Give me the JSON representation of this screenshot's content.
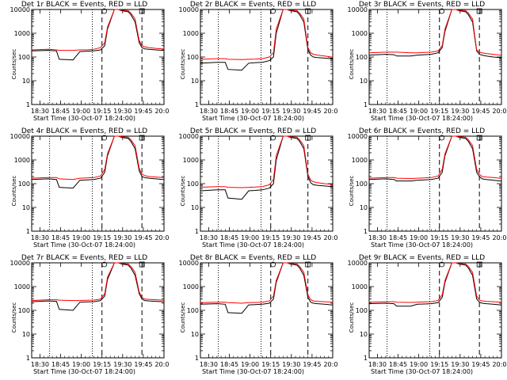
{
  "chart_data": {
    "type": "line",
    "series_names": [],
    "ylabel": "Counts/sec",
    "xlabel": "Start Time (30-Oct-07 18:24:00)",
    "x_tick_labels": [
      "18:30",
      "18:45",
      "19:00",
      "19:15",
      "19:30",
      "19:45",
      "20:00"
    ],
    "y_tick_labels": [
      "1",
      "10",
      "100",
      "1000",
      "10000"
    ],
    "yscale": "log",
    "ylim": [
      1,
      10000
    ],
    "x_ticks_minutes": [
      6,
      21,
      36,
      51,
      66,
      81,
      96
    ],
    "xlim_minutes": [
      0,
      96
    ],
    "x_minutes": [
      0,
      12,
      18,
      20,
      30,
      35,
      40,
      45,
      50,
      53,
      55,
      60,
      63,
      65,
      70,
      72,
      75,
      78,
      80,
      82,
      85,
      90,
      95,
      96
    ],
    "colors": {
      "events": "#000000",
      "lld": "#ff0000"
    },
    "panels": [
      {
        "title": "Det 1r BLACK = Events, RED = LLD",
        "events": [
          180,
          190,
          180,
          80,
          75,
          170,
          175,
          180,
          200,
          300,
          1500,
          10000,
          10000,
          9000,
          8000,
          6000,
          3000,
          400,
          250,
          220,
          210,
          200,
          190,
          190
        ],
        "lld": [
          200,
          210,
          200,
          190,
          190,
          200,
          200,
          210,
          250,
          400,
          1800,
          10000,
          10000,
          9500,
          9000,
          7000,
          4000,
          500,
          300,
          270,
          250,
          230,
          220,
          220
        ],
        "dotted_x": [
          13,
          44
        ],
        "dashed_x": [
          51,
          80
        ]
      },
      {
        "title": "Det 2r BLACK = Events, RED = LLD",
        "events": [
          55,
          60,
          60,
          30,
          28,
          55,
          58,
          60,
          70,
          100,
          1000,
          10000,
          10000,
          9000,
          8000,
          6000,
          3000,
          200,
          120,
          100,
          95,
          90,
          85,
          85
        ],
        "lld": [
          80,
          85,
          85,
          80,
          78,
          80,
          82,
          85,
          100,
          150,
          1500,
          10000,
          10000,
          9500,
          9000,
          7000,
          4000,
          250,
          150,
          130,
          120,
          110,
          100,
          100
        ],
        "dotted_x": [
          13,
          44
        ],
        "dashed_x": [
          51,
          78
        ]
      },
      {
        "title": "Det 3r BLACK = Events, RED = LLD",
        "events": [
          120,
          130,
          125,
          110,
          110,
          120,
          125,
          130,
          150,
          250,
          1200,
          10000,
          10000,
          9000,
          8000,
          6000,
          3000,
          180,
          130,
          120,
          110,
          100,
          95,
          95
        ],
        "lld": [
          150,
          160,
          160,
          160,
          150,
          150,
          155,
          160,
          180,
          300,
          1500,
          10000,
          10000,
          9500,
          9000,
          7000,
          4000,
          200,
          160,
          150,
          140,
          130,
          120,
          120
        ],
        "dotted_x": [
          13,
          44
        ],
        "dashed_x": [
          51,
          80
        ]
      },
      {
        "title": "Det 4r BLACK = Events, RED = LLD",
        "events": [
          150,
          160,
          150,
          70,
          65,
          140,
          145,
          150,
          170,
          300,
          1500,
          10000,
          10000,
          9000,
          8000,
          6000,
          3000,
          350,
          200,
          180,
          170,
          160,
          150,
          150
        ],
        "lld": [
          170,
          180,
          180,
          160,
          150,
          170,
          175,
          180,
          210,
          400,
          1800,
          10000,
          10000,
          9500,
          9000,
          7000,
          4000,
          450,
          250,
          220,
          200,
          190,
          180,
          180
        ],
        "dotted_x": [
          13,
          44
        ],
        "dashed_x": [
          51,
          80
        ]
      },
      {
        "title": "Det 5r BLACK = Events, RED = LLD",
        "events": [
          50,
          55,
          55,
          25,
          22,
          50,
          52,
          55,
          65,
          100,
          1000,
          10000,
          10000,
          9000,
          8000,
          6000,
          3000,
          200,
          110,
          90,
          85,
          80,
          75,
          75
        ],
        "lld": [
          70,
          75,
          75,
          70,
          68,
          70,
          72,
          75,
          90,
          150,
          1500,
          10000,
          10000,
          9500,
          9000,
          7000,
          4000,
          250,
          140,
          120,
          110,
          100,
          95,
          95
        ],
        "dotted_x": [
          13,
          44
        ],
        "dashed_x": [
          51,
          78
        ]
      },
      {
        "title": "Det 6r BLACK = Events, RED = LLD",
        "events": [
          150,
          160,
          150,
          130,
          130,
          140,
          145,
          150,
          170,
          300,
          1500,
          10000,
          10000,
          9000,
          8000,
          6000,
          3000,
          300,
          200,
          160,
          150,
          140,
          130,
          130
        ],
        "lld": [
          170,
          180,
          180,
          170,
          165,
          170,
          175,
          180,
          210,
          400,
          1800,
          10000,
          10000,
          9500,
          9000,
          7000,
          4000,
          400,
          250,
          200,
          190,
          180,
          170,
          170
        ],
        "dotted_x": [
          13,
          44
        ],
        "dashed_x": [
          51,
          80
        ]
      },
      {
        "title": "Det 7r BLACK = Events, RED = LLD",
        "events": [
          230,
          250,
          240,
          110,
          100,
          220,
          225,
          230,
          260,
          400,
          2000,
          10000,
          10000,
          9000,
          8000,
          6000,
          3000,
          500,
          300,
          260,
          250,
          240,
          230,
          230
        ],
        "lld": [
          260,
          280,
          280,
          270,
          260,
          260,
          265,
          270,
          300,
          500,
          2500,
          10000,
          10000,
          9500,
          9000,
          7000,
          4000,
          600,
          350,
          300,
          290,
          280,
          270,
          270
        ],
        "dotted_x": [
          13,
          44
        ],
        "dashed_x": [
          51,
          80
        ]
      },
      {
        "title": "Det 8r BLACK = Events, RED = LLD",
        "events": [
          180,
          190,
          180,
          80,
          75,
          170,
          175,
          180,
          200,
          300,
          1500,
          10000,
          10000,
          9000,
          8000,
          6000,
          3000,
          350,
          220,
          200,
          190,
          180,
          170,
          170
        ],
        "lld": [
          210,
          220,
          220,
          210,
          200,
          210,
          215,
          220,
          250,
          400,
          1800,
          10000,
          10000,
          9500,
          9000,
          7000,
          4000,
          450,
          280,
          250,
          240,
          230,
          220,
          220
        ],
        "dotted_x": [
          13,
          44
        ],
        "dashed_x": [
          51,
          78
        ]
      },
      {
        "title": "Det 9r BLACK = Events, RED = LLD",
        "events": [
          190,
          200,
          190,
          150,
          150,
          180,
          185,
          190,
          210,
          350,
          1500,
          10000,
          10000,
          9000,
          8000,
          6000,
          3000,
          300,
          220,
          200,
          190,
          180,
          170,
          170
        ],
        "lld": [
          220,
          230,
          230,
          220,
          215,
          220,
          225,
          230,
          260,
          450,
          1800,
          10000,
          10000,
          9500,
          9000,
          7000,
          4000,
          400,
          270,
          250,
          240,
          230,
          220,
          220
        ],
        "dotted_x": [
          13,
          44
        ],
        "dashed_x": [
          51,
          80
        ]
      }
    ]
  }
}
